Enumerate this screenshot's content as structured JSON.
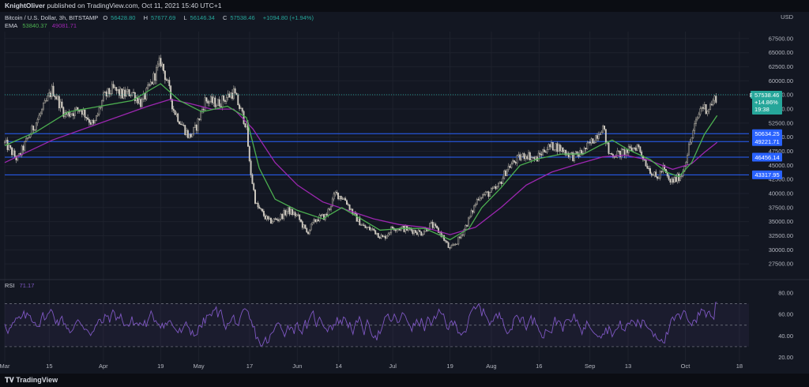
{
  "header": {
    "author": "KnightOliver",
    "published_text": "published on TradingView.com, Oct 11, 2021 15:40 UTC+1"
  },
  "legend": {
    "symbol": "Bitcoin / U.S. Dollar, 3h, BITSTAMP",
    "open_label": "O",
    "open": "56428.80",
    "high_label": "H",
    "high": "57677.69",
    "low_label": "L",
    "low": "56146.34",
    "close_label": "C",
    "close": "57538.46",
    "change": "+1094.80 (+1.94%)",
    "ema_label": "EMA",
    "ema_fast": "53840.37",
    "ema_slow": "49081.71"
  },
  "rsi_legend": {
    "label": "RSI",
    "value": "71.17"
  },
  "footer": {
    "brand": "TradingView"
  },
  "colors": {
    "background": "#131722",
    "candle_up": "#b7b2a6",
    "candle_down": "#d0cbc2",
    "ema_fast": "#4caf50",
    "ema_slow": "#9c27b0",
    "rsi_line": "#7e57c2",
    "support_lines": "#2962ff",
    "price_tag": "#26a69a"
  },
  "chart_data": {
    "type": "candlestick",
    "currency": "USD",
    "price_axis_ticks": [
      "67500.00",
      "65000.00",
      "62500.00",
      "60000.00",
      "57500.00",
      "55000.00",
      "52500.00",
      "50000.00",
      "47500.00",
      "45000.00",
      "42500.00",
      "40000.00",
      "37500.00",
      "35000.00",
      "32500.00",
      "30000.00",
      "27500.00"
    ],
    "ylim": [
      25000,
      68750
    ],
    "x_tick_labels": [
      "Mar",
      "15",
      "Apr",
      "19",
      "May",
      "17",
      "Jun",
      "14",
      "Jul",
      "19",
      "Aug",
      "16",
      "Sep",
      "13",
      "Oct",
      "18"
    ],
    "x_tick_days": [
      0,
      14,
      31,
      49,
      61,
      77,
      92,
      105,
      122,
      140,
      153,
      168,
      184,
      196,
      214,
      231
    ],
    "last_day": 224,
    "last_price": {
      "symbol": "BTCUSD",
      "price": "57538.46",
      "change_pct": "+14.86%",
      "countdown": "19:38",
      "value": 57538.46
    },
    "horizontal_levels": [
      {
        "label": "50634.25",
        "value": 50634.25
      },
      {
        "label": "49221.71",
        "value": 49221.71
      },
      {
        "label": "46456.14",
        "value": 46456.14
      },
      {
        "label": "43317.95",
        "value": 43317.95
      }
    ],
    "price_path": [
      [
        0,
        49000
      ],
      [
        4,
        46000
      ],
      [
        7,
        49500
      ],
      [
        12,
        55000
      ],
      [
        15,
        58500
      ],
      [
        19,
        54000
      ],
      [
        24,
        55000
      ],
      [
        28,
        52000
      ],
      [
        31,
        57000
      ],
      [
        34,
        58500
      ],
      [
        37,
        57500
      ],
      [
        40,
        58000
      ],
      [
        43,
        56000
      ],
      [
        46,
        59500
      ],
      [
        49,
        63500
      ],
      [
        51,
        60000
      ],
      [
        53,
        55000
      ],
      [
        55,
        53000
      ],
      [
        58,
        50000
      ],
      [
        60,
        51500
      ],
      [
        63,
        56500
      ],
      [
        67,
        56000
      ],
      [
        72,
        58000
      ],
      [
        74,
        55000
      ],
      [
        76,
        52000
      ],
      [
        77,
        45000
      ],
      [
        79,
        38000
      ],
      [
        81,
        36500
      ],
      [
        83,
        35000
      ],
      [
        86,
        35500
      ],
      [
        89,
        37000
      ],
      [
        92,
        36000
      ],
      [
        95,
        33000
      ],
      [
        98,
        35500
      ],
      [
        101,
        36000
      ],
      [
        104,
        40000
      ],
      [
        107,
        39000
      ],
      [
        110,
        36000
      ],
      [
        113,
        34000
      ],
      [
        116,
        33500
      ],
      [
        119,
        32000
      ],
      [
        122,
        34000
      ],
      [
        125,
        33800
      ],
      [
        128,
        33500
      ],
      [
        131,
        33000
      ],
      [
        134,
        34500
      ],
      [
        137,
        33000
      ],
      [
        140,
        30000
      ],
      [
        143,
        32000
      ],
      [
        146,
        35500
      ],
      [
        149,
        39500
      ],
      [
        152,
        40000
      ],
      [
        155,
        41000
      ],
      [
        158,
        44500
      ],
      [
        161,
        46000
      ],
      [
        164,
        47000
      ],
      [
        167,
        46000
      ],
      [
        170,
        48000
      ],
      [
        173,
        48500
      ],
      [
        176,
        47500
      ],
      [
        179,
        46500
      ],
      [
        182,
        47500
      ],
      [
        185,
        49500
      ],
      [
        188,
        52000
      ],
      [
        190,
        47000
      ],
      [
        193,
        47000
      ],
      [
        196,
        47500
      ],
      [
        199,
        48500
      ],
      [
        202,
        45000
      ],
      [
        205,
        42500
      ],
      [
        207,
        44500
      ],
      [
        209,
        42000
      ],
      [
        211,
        42500
      ],
      [
        213,
        43500
      ],
      [
        215,
        48000
      ],
      [
        217,
        52000
      ],
      [
        219,
        55500
      ],
      [
        221,
        55000
      ],
      [
        223,
        56500
      ],
      [
        224,
        57500
      ]
    ],
    "ema_fast_path": [
      [
        0,
        48500
      ],
      [
        10,
        51000
      ],
      [
        20,
        54500
      ],
      [
        30,
        55500
      ],
      [
        40,
        56500
      ],
      [
        49,
        59500
      ],
      [
        55,
        56500
      ],
      [
        62,
        54500
      ],
      [
        70,
        55500
      ],
      [
        76,
        53500
      ],
      [
        80,
        44500
      ],
      [
        85,
        39000
      ],
      [
        92,
        37000
      ],
      [
        100,
        35500
      ],
      [
        106,
        37500
      ],
      [
        112,
        35500
      ],
      [
        118,
        33500
      ],
      [
        125,
        33800
      ],
      [
        132,
        33800
      ],
      [
        140,
        31800
      ],
      [
        146,
        33800
      ],
      [
        150,
        37500
      ],
      [
        156,
        41000
      ],
      [
        162,
        45000
      ],
      [
        168,
        46200
      ],
      [
        175,
        47000
      ],
      [
        182,
        47000
      ],
      [
        187,
        48500
      ],
      [
        191,
        49500
      ],
      [
        196,
        47800
      ],
      [
        203,
        46000
      ],
      [
        208,
        43800
      ],
      [
        212,
        43000
      ],
      [
        216,
        45500
      ],
      [
        220,
        50500
      ],
      [
        224,
        53840
      ]
    ],
    "ema_slow_path": [
      [
        0,
        45500
      ],
      [
        15,
        49500
      ],
      [
        30,
        52500
      ],
      [
        45,
        55500
      ],
      [
        52,
        56700
      ],
      [
        58,
        56000
      ],
      [
        65,
        55000
      ],
      [
        72,
        55000
      ],
      [
        78,
        51500
      ],
      [
        85,
        45500
      ],
      [
        92,
        41500
      ],
      [
        100,
        38500
      ],
      [
        108,
        37000
      ],
      [
        116,
        35500
      ],
      [
        124,
        34500
      ],
      [
        132,
        34000
      ],
      [
        140,
        32700
      ],
      [
        148,
        34000
      ],
      [
        156,
        37500
      ],
      [
        164,
        41500
      ],
      [
        172,
        43800
      ],
      [
        180,
        45200
      ],
      [
        188,
        46500
      ],
      [
        195,
        46800
      ],
      [
        202,
        46000
      ],
      [
        210,
        44300
      ],
      [
        216,
        45300
      ],
      [
        220,
        47300
      ],
      [
        224,
        49080
      ]
    ],
    "rsi": {
      "levels": [
        80,
        60,
        40,
        20
      ],
      "overbought": 70,
      "oversold": 30,
      "ylim": [
        16,
        88
      ],
      "current": 71.17
    }
  }
}
